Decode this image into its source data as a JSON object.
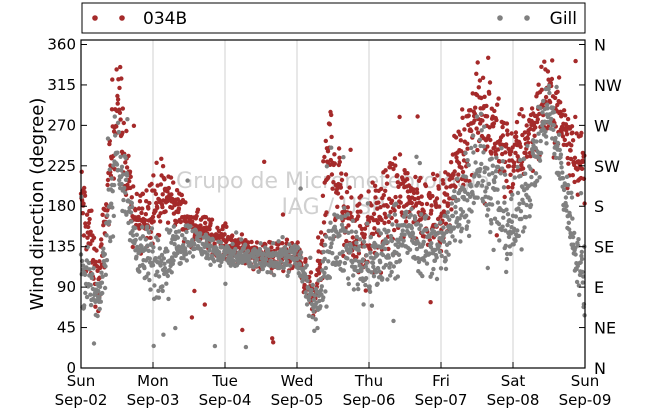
{
  "chart_data": {
    "type": "scatter",
    "title": "",
    "ylabel": "Wind direction (degree)",
    "xlabel": "",
    "xlim": [
      "2018-09-02 00:00",
      "2018-09-09 00:00"
    ],
    "ylim": [
      0,
      365
    ],
    "grid": "vertical",
    "legend": {
      "placement": "top",
      "entries": [
        "034B",
        "Gill"
      ]
    },
    "x_ticks": [
      {
        "day": "Sun",
        "date": "Sep-02"
      },
      {
        "day": "Mon",
        "date": "Sep-03"
      },
      {
        "day": "Tue",
        "date": "Sep-04"
      },
      {
        "day": "Wed",
        "date": "Sep-05"
      },
      {
        "day": "Thu",
        "date": "Sep-06"
      },
      {
        "day": "Fri",
        "date": "Sep-07"
      },
      {
        "day": "Sat",
        "date": "Sep-08"
      },
      {
        "day": "Sun",
        "date": "Sep-09"
      }
    ],
    "y_ticks": [
      0,
      45,
      90,
      135,
      180,
      225,
      270,
      315,
      360
    ],
    "y_right_ticks": [
      {
        "value": 0,
        "label": "N"
      },
      {
        "value": 45,
        "label": "NE"
      },
      {
        "value": 90,
        "label": "E"
      },
      {
        "value": 135,
        "label": "SE"
      },
      {
        "value": 180,
        "label": "S"
      },
      {
        "value": 225,
        "label": "SW"
      },
      {
        "value": 270,
        "label": "W"
      },
      {
        "value": 315,
        "label": "NW"
      },
      {
        "value": 360,
        "label": "N"
      }
    ],
    "watermark": [
      "Grupo de Micrometeorologia",
      "IAG / USP"
    ],
    "series": [
      {
        "name": "034B",
        "color": "#a52a2a",
        "trend": [
          {
            "day": 0.0,
            "value": 190,
            "spread": 35
          },
          {
            "day": 0.25,
            "value": 90,
            "spread": 30
          },
          {
            "day": 0.5,
            "value": 300,
            "spread": 40
          },
          {
            "day": 0.75,
            "value": 160,
            "spread": 25
          },
          {
            "day": 1.0,
            "value": 185,
            "spread": 35
          },
          {
            "day": 1.25,
            "value": 190,
            "spread": 25
          },
          {
            "day": 1.5,
            "value": 160,
            "spread": 15
          },
          {
            "day": 2.0,
            "value": 140,
            "spread": 15
          },
          {
            "day": 2.5,
            "value": 125,
            "spread": 12
          },
          {
            "day": 3.0,
            "value": 125,
            "spread": 15
          },
          {
            "day": 3.25,
            "value": 70,
            "spread": 20
          },
          {
            "day": 3.45,
            "value": 240,
            "spread": 60
          },
          {
            "day": 3.75,
            "value": 150,
            "spread": 35
          },
          {
            "day": 4.0,
            "value": 150,
            "spread": 40
          },
          {
            "day": 4.4,
            "value": 190,
            "spread": 40
          },
          {
            "day": 5.0,
            "value": 170,
            "spread": 30
          },
          {
            "day": 5.5,
            "value": 290,
            "spread": 40
          },
          {
            "day": 6.0,
            "value": 230,
            "spread": 35
          },
          {
            "day": 6.5,
            "value": 300,
            "spread": 35
          },
          {
            "day": 7.0,
            "value": 220,
            "spread": 30
          }
        ]
      },
      {
        "name": "Gill",
        "color": "#808080",
        "trend": [
          {
            "day": 0.0,
            "value": 110,
            "spread": 35
          },
          {
            "day": 0.25,
            "value": 70,
            "spread": 15
          },
          {
            "day": 0.5,
            "value": 250,
            "spread": 40
          },
          {
            "day": 0.75,
            "value": 140,
            "spread": 20
          },
          {
            "day": 1.0,
            "value": 110,
            "spread": 35
          },
          {
            "day": 1.5,
            "value": 145,
            "spread": 15
          },
          {
            "day": 2.0,
            "value": 125,
            "spread": 12
          },
          {
            "day": 2.5,
            "value": 120,
            "spread": 12
          },
          {
            "day": 3.0,
            "value": 125,
            "spread": 15
          },
          {
            "day": 3.25,
            "value": 60,
            "spread": 18
          },
          {
            "day": 3.5,
            "value": 150,
            "spread": 30
          },
          {
            "day": 4.0,
            "value": 110,
            "spread": 35
          },
          {
            "day": 4.5,
            "value": 150,
            "spread": 30
          },
          {
            "day": 5.0,
            "value": 130,
            "spread": 30
          },
          {
            "day": 5.5,
            "value": 230,
            "spread": 50
          },
          {
            "day": 6.0,
            "value": 150,
            "spread": 40
          },
          {
            "day": 6.5,
            "value": 290,
            "spread": 30
          },
          {
            "day": 7.0,
            "value": 80,
            "spread": 30
          }
        ]
      }
    ]
  }
}
